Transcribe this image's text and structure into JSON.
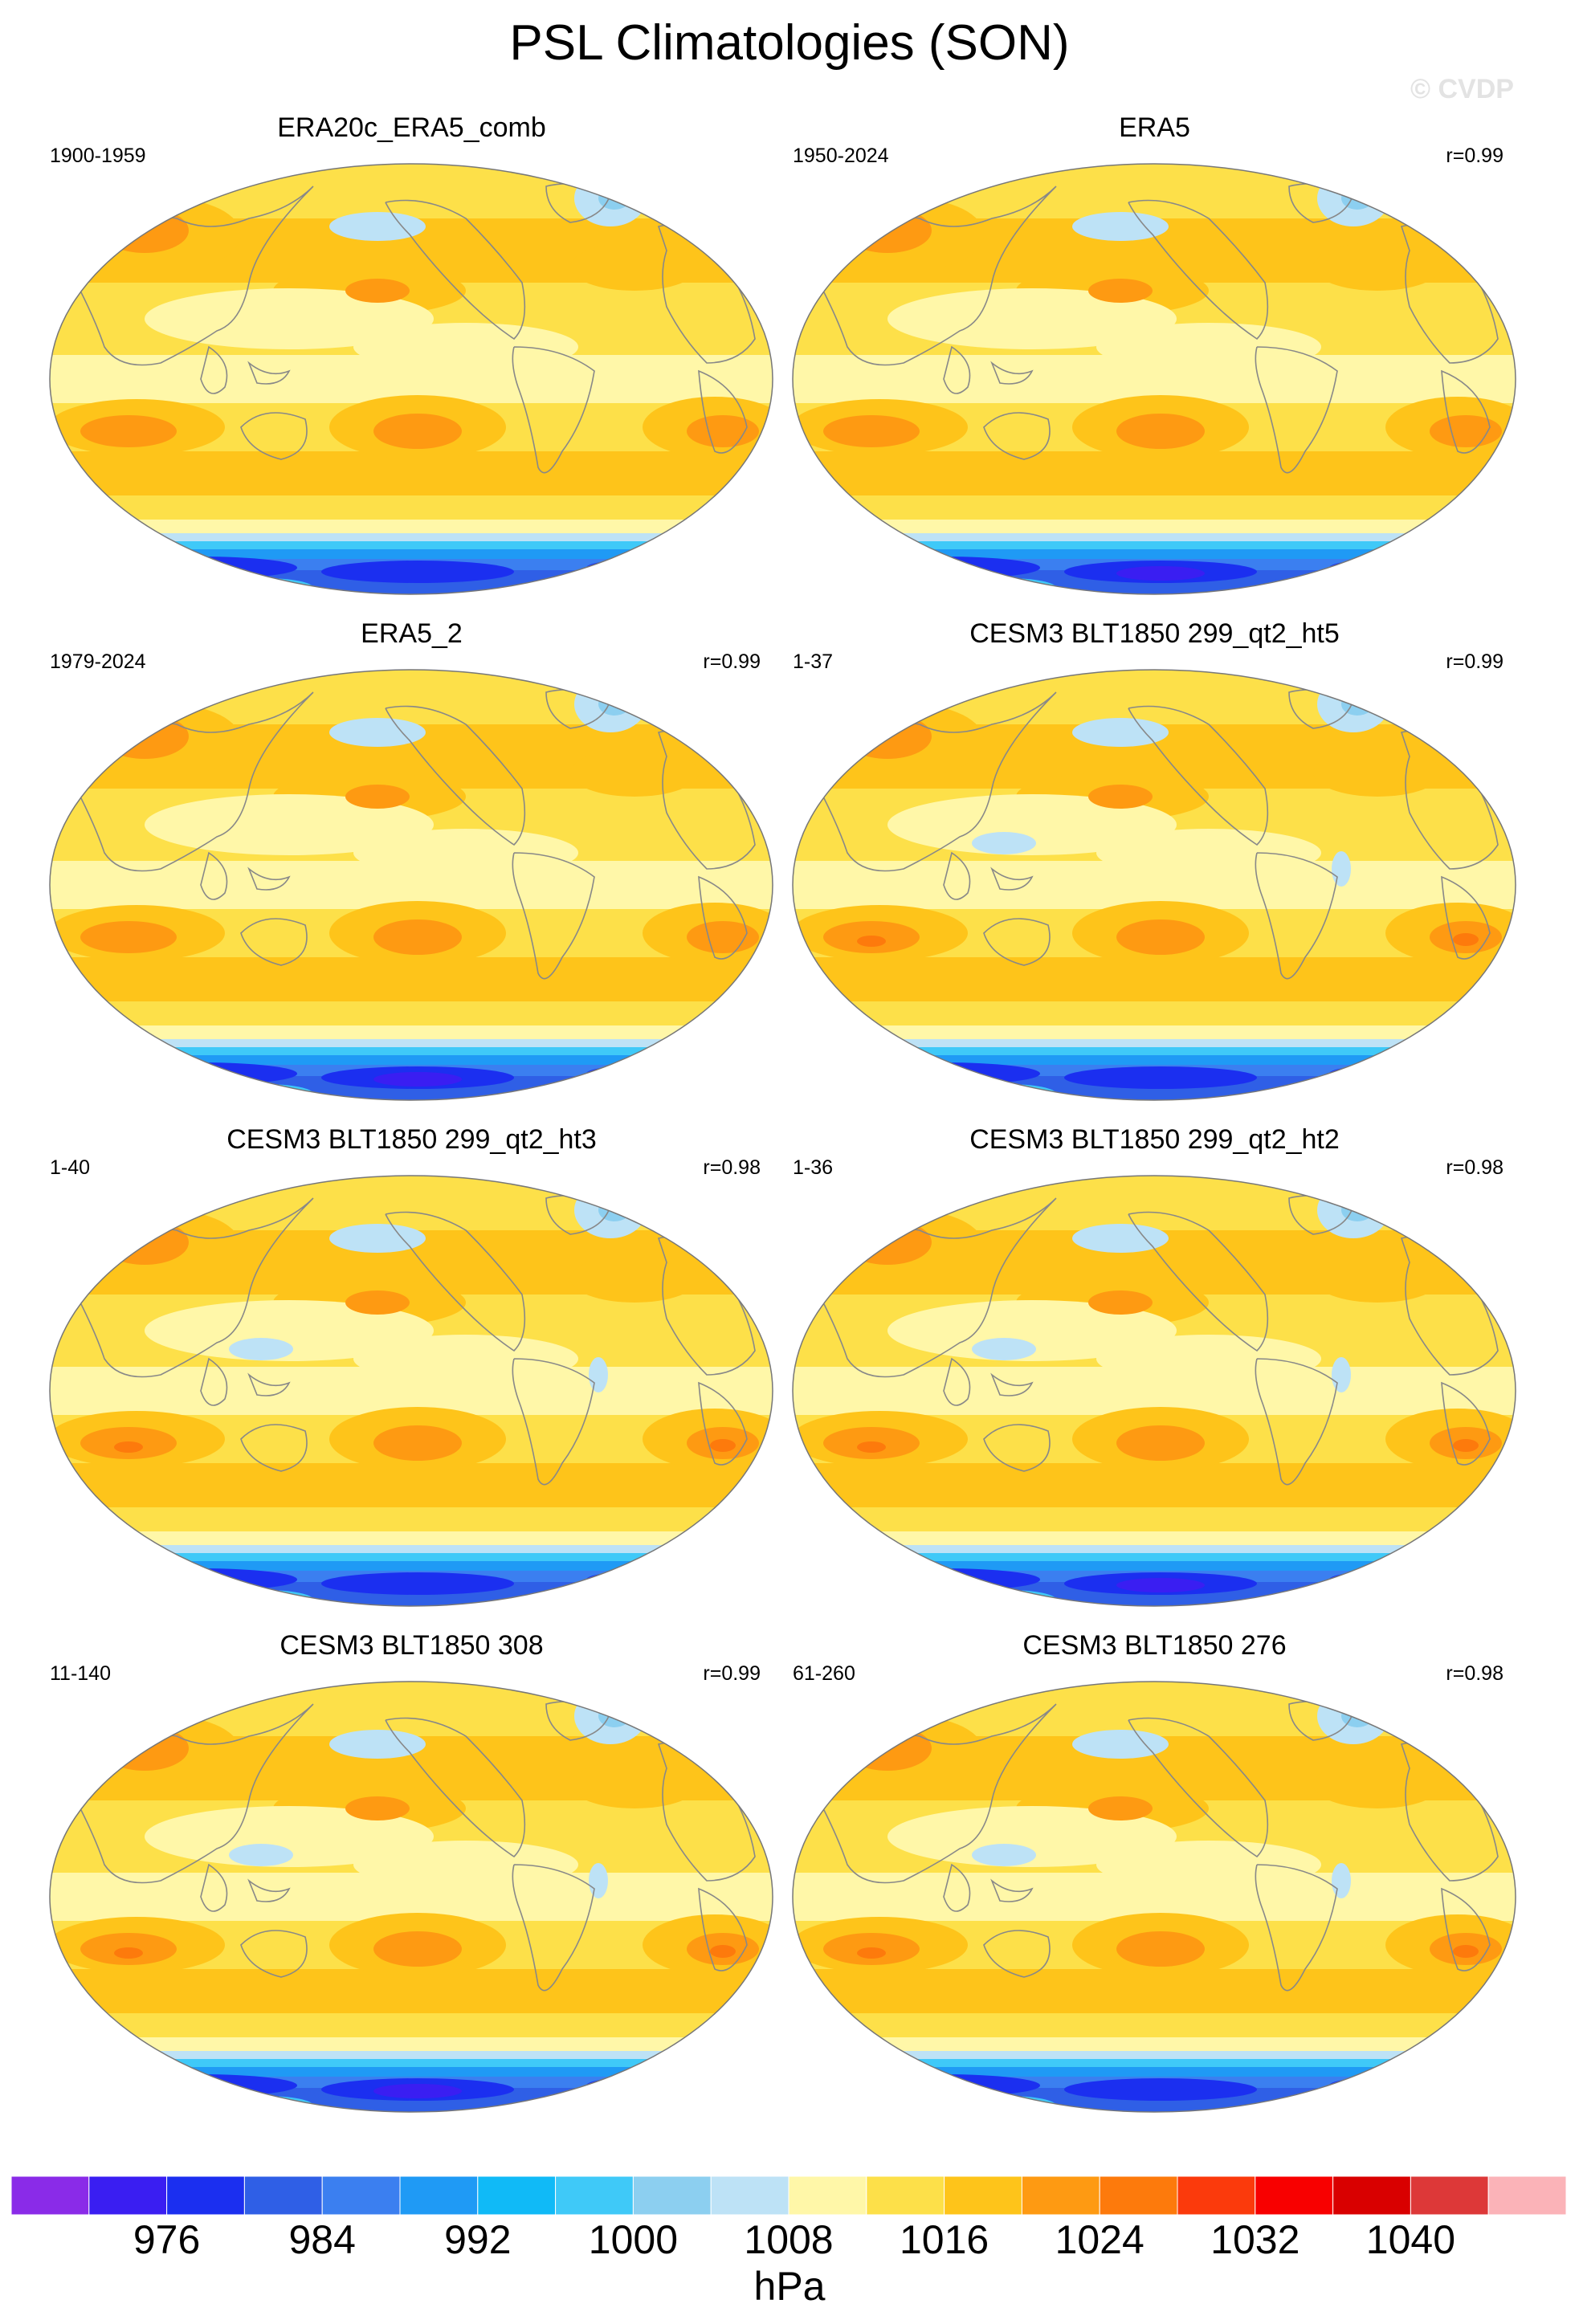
{
  "title": "PSL Climatologies (SON)",
  "watermark": "© CVDP",
  "panels": [
    {
      "title": "ERA20c_ERA5_comb",
      "period": "1900-1959",
      "r": "",
      "variant": 0
    },
    {
      "title": "ERA5",
      "period": "1950-2024",
      "r": "r=0.99",
      "variant": 1
    },
    {
      "title": "ERA5_2",
      "period": "1979-2024",
      "r": "r=0.99",
      "variant": 2
    },
    {
      "title": "CESM3 BLT1850 299_qt2_ht5",
      "period": "1-37",
      "r": "r=0.99",
      "variant": 3
    },
    {
      "title": "CESM3 BLT1850 299_qt2_ht3",
      "period": "1-40",
      "r": "r=0.98",
      "variant": 4
    },
    {
      "title": "CESM3 BLT1850 299_qt2_ht2",
      "period": "1-36",
      "r": "r=0.98",
      "variant": 5
    },
    {
      "title": "CESM3 BLT1850 308",
      "period": "11-140",
      "r": "r=0.99",
      "variant": 6
    },
    {
      "title": "CESM3 BLT1850 276",
      "period": "61-260",
      "r": "r=0.98",
      "variant": 7
    }
  ],
  "colorbar": {
    "colors": [
      "#8a2be8",
      "#3a1ef2",
      "#1b2ff0",
      "#2f5fe6",
      "#3b7ff0",
      "#1f9af5",
      "#10baf7",
      "#3fc9f8",
      "#8ccff0",
      "#bde2f6",
      "#fff7a8",
      "#fde049",
      "#fec41a",
      "#fe9a12",
      "#fd7a0c",
      "#fb3a0c",
      "#f80000",
      "#d90000",
      "#dd3838",
      "#fbb3b8"
    ],
    "tick_labels": [
      "976",
      "984",
      "992",
      "1000",
      "1008",
      "1016",
      "1024",
      "1032",
      "1040"
    ],
    "units": "hPa"
  }
}
